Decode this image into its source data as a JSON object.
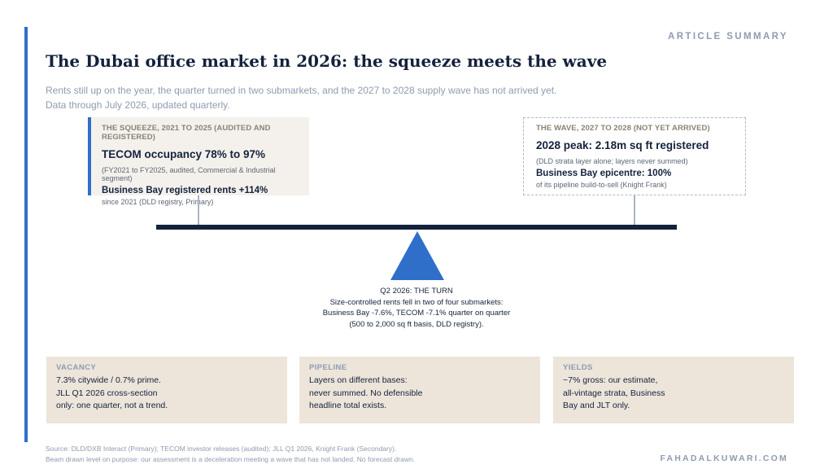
{
  "header": {
    "kicker": "ARTICLE SUMMARY",
    "title": "The Dubai office market in 2026: the squeeze meets the wave",
    "subtitle_line1": "Rents still up on the year, the quarter turned in two submarkets, and the 2027 to 2028 supply wave has not arrived yet.",
    "subtitle_line2": "Data through July 2026, updated quarterly."
  },
  "squeeze": {
    "kicker": "THE SQUEEZE, 2021 TO 2025 (AUDITED AND REGISTERED)",
    "headline": "TECOM occupancy 78% to 97%",
    "note": "(FY2021 to FY2025, audited, Commercial & Industrial segment)",
    "strong": "Business Bay registered rents +114%",
    "small": "since 2021 (DLD registry, Primary)"
  },
  "wave": {
    "kicker": "THE WAVE, 2027 TO 2028 (NOT YET ARRIVED)",
    "headline": "2028 peak: 2.18m sq ft registered",
    "note": "(DLD strata layer alone; layers never summed)",
    "strong": "Business Bay epicentre: 100%",
    "small": "of its pipeline build-to-sell (Knight Frank)"
  },
  "turn": {
    "line1": "Q2 2026: THE TURN",
    "line2": "Size-controlled rents fell in two of four submarkets:",
    "line3": "Business Bay -7.6%, TECOM -7.1% quarter on quarter",
    "line4": "(500 to 2,000 sq ft basis, DLD registry)."
  },
  "cards": [
    {
      "kicker": "VACANCY",
      "lines": [
        "7.3% citywide / 0.7% prime.",
        "JLL Q1 2026 cross-section",
        "only: one quarter, not a trend."
      ]
    },
    {
      "kicker": "PIPELINE",
      "lines": [
        "Layers on different bases:",
        "never summed. No defensible",
        "headline total exists."
      ]
    },
    {
      "kicker": "YIELDS",
      "lines": [
        "~7% gross: our estimate,",
        "all-vintage strata, Business",
        "Bay and JLT only."
      ]
    }
  ],
  "footer": {
    "source_line1": "Source: DLD/DXB Interact (Primary); TECOM investor releases (audited); JLL Q1 2026, Knight Frank (Secondary).",
    "source_line2": "Beam drawn level on purpose: our assessment is a deceleration meeting a wave that has not landed. No forecast drawn.",
    "brand": "FAHADALKUWARI.COM"
  },
  "colors": {
    "accent": "#2f6fc9",
    "navy": "#14223d",
    "muted": "#8e9bb0",
    "card_bg": "#ede5da",
    "squeeze_bg": "#f4f1ec"
  }
}
